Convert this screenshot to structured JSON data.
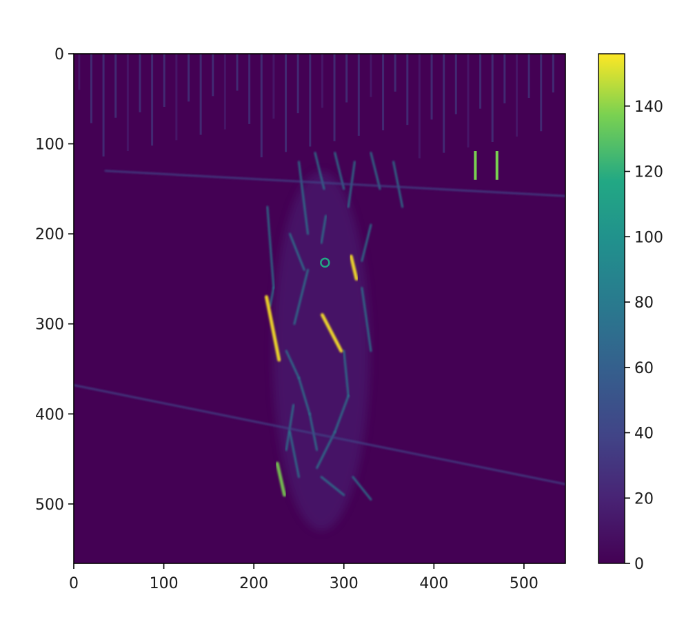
{
  "chart_data": {
    "type": "heatmap",
    "title": "",
    "xlabel": "",
    "ylabel": "",
    "image_width": 546,
    "image_height": 566,
    "xlim": [
      0,
      546
    ],
    "ylim": [
      566,
      0
    ],
    "x_ticks": [
      0,
      100,
      200,
      300,
      400,
      500
    ],
    "x_tick_labels": [
      "0",
      "100",
      "200",
      "300",
      "400",
      "500"
    ],
    "y_ticks": [
      0,
      100,
      200,
      300,
      400,
      500
    ],
    "y_tick_labels": [
      "0",
      "100",
      "200",
      "300",
      "400",
      "500"
    ],
    "colormap": "viridis",
    "color_range": [
      0,
      156
    ],
    "colorbar_ticks": [
      0,
      20,
      40,
      60,
      80,
      100,
      120,
      140
    ],
    "colorbar_tick_labels": [
      "0",
      "20",
      "40",
      "60",
      "80",
      "100",
      "120",
      "140"
    ],
    "colors": {
      "background": "#440154",
      "low": "#46337e",
      "mid": "#21908d",
      "high": "#fde725"
    },
    "features": [
      {
        "kind": "diagonal-edge",
        "x": [
          0,
          546
        ],
        "y": [
          368,
          478
        ],
        "value": 35
      },
      {
        "kind": "diagonal-edge",
        "x": [
          35,
          546
        ],
        "y": [
          130,
          158
        ],
        "value": 30
      },
      {
        "kind": "bright-edge",
        "x": [
          214,
          228
        ],
        "y": [
          270,
          340
        ],
        "value": 150
      },
      {
        "kind": "bright-edge",
        "x": [
          276,
          297
        ],
        "y": [
          290,
          330
        ],
        "value": 140
      },
      {
        "kind": "bright-edge",
        "x": [
          308,
          314
        ],
        "y": [
          225,
          250
        ],
        "value": 140
      },
      {
        "kind": "bright-edge",
        "x": [
          226,
          234
        ],
        "y": [
          455,
          490
        ],
        "value": 130
      },
      {
        "kind": "bright-spot",
        "x": [
          446,
          470
        ],
        "y": [
          108,
          140
        ],
        "value": 120
      },
      {
        "kind": "ring",
        "x": [
          279,
          279
        ],
        "y": [
          232,
          232
        ],
        "value": 100
      }
    ]
  }
}
